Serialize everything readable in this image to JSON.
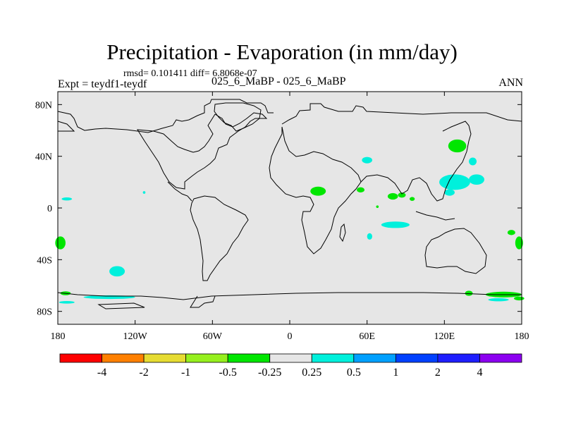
{
  "chart_data": {
    "type": "heatmap",
    "title": "Precipitation - Evaporation (in mm/day)",
    "stats": "rmsd= 0.101411  diff= 6.8068e-07",
    "experiment": "Expt = teydf1-teydf",
    "subtitle": "025_6_MaBP - 025_6_MaBP",
    "season": "ANN",
    "x_range": [
      -180,
      180
    ],
    "y_range": [
      -90,
      90
    ],
    "x_ticks": [
      {
        "value": -180,
        "label": "180"
      },
      {
        "value": -120,
        "label": "120W"
      },
      {
        "value": -60,
        "label": "60W"
      },
      {
        "value": 0,
        "label": "0"
      },
      {
        "value": 60,
        "label": "60E"
      },
      {
        "value": 120,
        "label": "120E"
      },
      {
        "value": 180,
        "label": "180"
      }
    ],
    "y_ticks": [
      {
        "value": 80,
        "label": "80N"
      },
      {
        "value": 40,
        "label": "40N"
      },
      {
        "value": 0,
        "label": "0"
      },
      {
        "value": -40,
        "label": "40S"
      },
      {
        "value": -80,
        "label": "80S"
      }
    ],
    "background_color": "#e6e6e6",
    "colorbar": {
      "colors": [
        "#ff0000",
        "#ff8000",
        "#e6dc32",
        "#96f01e",
        "#00e600",
        "#e6e6e6",
        "#00f0dc",
        "#00a0ff",
        "#0040ff",
        "#1e1eff",
        "#8c00f0"
      ],
      "labels": [
        "-4",
        "-2",
        "-1",
        "-0.5",
        "-0.25",
        "0.25",
        "0.5",
        "1",
        "2",
        "4"
      ]
    },
    "regions": [
      {
        "color": "#00f0dc",
        "lon": 60,
        "lat": 37,
        "rx": 4,
        "ry": 2.5
      },
      {
        "color": "#00e600",
        "lon": 130,
        "lat": 48,
        "rx": 7,
        "ry": 5
      },
      {
        "color": "#00f0dc",
        "lon": 142,
        "lat": 36,
        "rx": 3,
        "ry": 3
      },
      {
        "color": "#00f0dc",
        "lon": 128,
        "lat": 20,
        "rx": 12,
        "ry": 6
      },
      {
        "color": "#00f0dc",
        "lon": 145,
        "lat": 22,
        "rx": 6,
        "ry": 4
      },
      {
        "color": "#00f0dc",
        "lon": 124,
        "lat": 12,
        "rx": 4,
        "ry": 2.5
      },
      {
        "color": "#00f0dc",
        "lon": -173,
        "lat": 7,
        "rx": 4,
        "ry": 1.2
      },
      {
        "color": "#00f0dc",
        "lon": -113,
        "lat": 12,
        "rx": 1,
        "ry": 1
      },
      {
        "color": "#00e600",
        "lon": 22,
        "lat": 13,
        "rx": 6,
        "ry": 3.5
      },
      {
        "color": "#00e600",
        "lon": 55,
        "lat": 14,
        "rx": 3,
        "ry": 2
      },
      {
        "color": "#00e600",
        "lon": 80,
        "lat": 9,
        "rx": 4,
        "ry": 2.5
      },
      {
        "color": "#00e600",
        "lon": 87,
        "lat": 10,
        "rx": 3,
        "ry": 2
      },
      {
        "color": "#00e600",
        "lon": 95,
        "lat": 7,
        "rx": 2,
        "ry": 1.5
      },
      {
        "color": "#00e600",
        "lon": 68,
        "lat": 1,
        "rx": 1,
        "ry": 1
      },
      {
        "color": "#00f0dc",
        "lon": 82,
        "lat": -13,
        "rx": 11,
        "ry": 2.5
      },
      {
        "color": "#00f0dc",
        "lon": 62,
        "lat": -22,
        "rx": 2,
        "ry": 2.5
      },
      {
        "color": "#00e600",
        "lon": 172,
        "lat": -19,
        "rx": 3,
        "ry": 2
      },
      {
        "color": "#00e600",
        "lon": -178,
        "lat": -27,
        "rx": 4,
        "ry": 5
      },
      {
        "color": "#00e600",
        "lon": 178,
        "lat": -27,
        "rx": 3,
        "ry": 5
      },
      {
        "color": "#00f0dc",
        "lon": -134,
        "lat": -49,
        "rx": 6,
        "ry": 4
      },
      {
        "color": "#00e600",
        "lon": -174,
        "lat": -66,
        "rx": 4,
        "ry": 1.5
      },
      {
        "color": "#00f0dc",
        "lon": -140,
        "lat": -69,
        "rx": 20,
        "ry": 1.4
      },
      {
        "color": "#00f0dc",
        "lon": -173,
        "lat": -73,
        "rx": 6,
        "ry": 1
      },
      {
        "color": "#00e600",
        "lon": 139,
        "lat": -66,
        "rx": 3,
        "ry": 2
      },
      {
        "color": "#00e600",
        "lon": 166,
        "lat": -67,
        "rx": 14,
        "ry": 2.2
      },
      {
        "color": "#00f0dc",
        "lon": 162,
        "lat": -71,
        "rx": 8,
        "ry": 1.2
      },
      {
        "color": "#00e600",
        "lon": 178,
        "lat": -70,
        "rx": 4,
        "ry": 1.5
      }
    ]
  }
}
